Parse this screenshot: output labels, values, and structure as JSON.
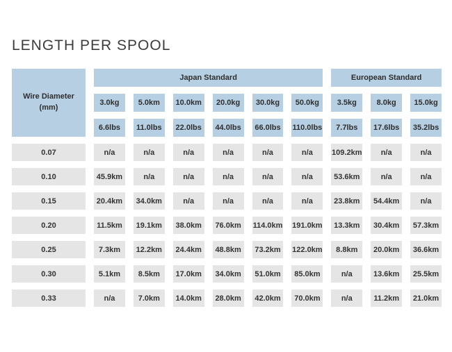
{
  "page": {
    "title": "LENGTH PER SPOOL"
  },
  "colors": {
    "header_bg": "#b7cfe2",
    "cell_bg": "#e5e5e5",
    "text": "#333333",
    "title_text": "#3c3c3c"
  },
  "chart_data": {
    "type": "table",
    "title": "LENGTH PER SPOOL",
    "corner_header": "Wire Diameter (mm)",
    "groups": [
      {
        "label": "Japan Standard",
        "span": 6
      },
      {
        "label": "European Standard",
        "span": 3
      }
    ],
    "kg_headers": [
      "3.0kg",
      "5.0km",
      "10.0km",
      "20.0kg",
      "30.0kg",
      "50.0kg",
      "3.5kg",
      "8.0kg",
      "15.0kg"
    ],
    "lbs_headers": [
      "6.6lbs",
      "11.0lbs",
      "22.0lbs",
      "44.0lbs",
      "66.0lbs",
      "110.0lbs",
      "7.7lbs",
      "17.6lbs",
      "35.2lbs"
    ],
    "rows": [
      {
        "diameter": "0.07",
        "values": [
          "n/a",
          "n/a",
          "n/a",
          "n/a",
          "n/a",
          "n/a",
          "109.2km",
          "n/a",
          "n/a"
        ]
      },
      {
        "diameter": "0.10",
        "values": [
          "45.9km",
          "n/a",
          "n/a",
          "n/a",
          "n/a",
          "n/a",
          "53.6km",
          "n/a",
          "n/a"
        ]
      },
      {
        "diameter": "0.15",
        "values": [
          "20.4km",
          "34.0km",
          "n/a",
          "n/a",
          "n/a",
          "n/a",
          "23.8km",
          "54.4km",
          "n/a"
        ]
      },
      {
        "diameter": "0.20",
        "values": [
          "11.5km",
          "19.1km",
          "38.0km",
          "76.0km",
          "114.0km",
          "191.0km",
          "13.3km",
          "30.4km",
          "57.3km"
        ]
      },
      {
        "diameter": "0.25",
        "values": [
          "7.3km",
          "12.2km",
          "24.4km",
          "48.8km",
          "73.2km",
          "122.0km",
          "8.8km",
          "20.0km",
          "36.6km"
        ]
      },
      {
        "diameter": "0.30",
        "values": [
          "5.1km",
          "8.5km",
          "17.0km",
          "34.0km",
          "51.0km",
          "85.0km",
          "n/a",
          "13.6km",
          "25.5km"
        ]
      },
      {
        "diameter": "0.33",
        "values": [
          "n/a",
          "7.0km",
          "14.0km",
          "28.0km",
          "42.0km",
          "70.0km",
          "n/a",
          "11.2km",
          "21.0km"
        ]
      }
    ]
  }
}
